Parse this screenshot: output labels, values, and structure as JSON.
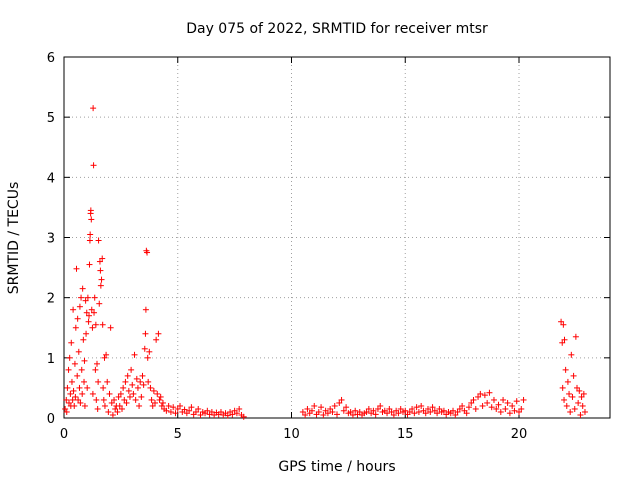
{
  "chart_data": {
    "type": "scatter",
    "title": "Day 075 of 2022, SRMTID for receiver mtsr",
    "xlabel": "GPS time / hours",
    "ylabel": "SRMTID / TECUs",
    "xlim": [
      0,
      24
    ],
    "ylim": [
      0,
      6
    ],
    "xticks": [
      0,
      5,
      10,
      15,
      20
    ],
    "yticks": [
      0,
      1,
      2,
      3,
      4,
      5,
      6
    ],
    "grid": true,
    "marker": "+",
    "color": "#ff0000",
    "series": [
      {
        "name": "SRMTID",
        "points": [
          [
            0.05,
            0.15
          ],
          [
            0.1,
            0.3
          ],
          [
            0.12,
            0.1
          ],
          [
            0.15,
            0.5
          ],
          [
            0.2,
            0.8
          ],
          [
            0.22,
            0.25
          ],
          [
            0.25,
            1.0
          ],
          [
            0.28,
            0.4
          ],
          [
            0.3,
            0.2
          ],
          [
            0.32,
            1.25
          ],
          [
            0.35,
            0.6
          ],
          [
            0.38,
            0.3
          ],
          [
            0.4,
            1.8
          ],
          [
            0.42,
            0.45
          ],
          [
            0.45,
            0.2
          ],
          [
            0.48,
            0.9
          ],
          [
            0.5,
            0.35
          ],
          [
            0.52,
            1.5
          ],
          [
            0.55,
            2.48
          ],
          [
            0.58,
            0.7
          ],
          [
            0.6,
            1.65
          ],
          [
            0.62,
            0.3
          ],
          [
            0.65,
            1.1
          ],
          [
            0.68,
            0.5
          ],
          [
            0.7,
            1.85
          ],
          [
            0.72,
            0.25
          ],
          [
            0.75,
            2.0
          ],
          [
            0.78,
            0.8
          ],
          [
            0.8,
            0.4
          ],
          [
            0.82,
            2.15
          ],
          [
            0.85,
            1.3
          ],
          [
            0.88,
            0.6
          ],
          [
            0.9,
            0.95
          ],
          [
            0.92,
            0.2
          ],
          [
            0.95,
            1.95
          ],
          [
            0.97,
            1.4
          ],
          [
            1.0,
            1.75
          ],
          [
            1.02,
            0.5
          ],
          [
            1.05,
            2.0
          ],
          [
            1.08,
            1.6
          ],
          [
            1.1,
            1.7
          ],
          [
            1.12,
            2.55
          ],
          [
            1.14,
            2.95
          ],
          [
            1.15,
            3.05
          ],
          [
            1.17,
            3.4
          ],
          [
            1.18,
            3.45
          ],
          [
            1.2,
            3.3
          ],
          [
            1.22,
            1.8
          ],
          [
            1.25,
            1.5
          ],
          [
            1.27,
            0.4
          ],
          [
            1.28,
            5.15
          ],
          [
            1.3,
            4.2
          ],
          [
            1.32,
            1.75
          ],
          [
            1.35,
            2.0
          ],
          [
            1.38,
            0.8
          ],
          [
            1.4,
            1.55
          ],
          [
            1.42,
            0.3
          ],
          [
            1.45,
            0.9
          ],
          [
            1.48,
            0.15
          ],
          [
            1.5,
            0.6
          ],
          [
            1.52,
            2.95
          ],
          [
            1.55,
            1.9
          ],
          [
            1.58,
            2.6
          ],
          [
            1.6,
            2.45
          ],
          [
            1.62,
            2.2
          ],
          [
            1.65,
            2.3
          ],
          [
            1.68,
            2.65
          ],
          [
            1.7,
            1.55
          ],
          [
            1.72,
            0.5
          ],
          [
            1.75,
            0.3
          ],
          [
            1.78,
            1.0
          ],
          [
            1.8,
            0.2
          ],
          [
            1.85,
            1.05
          ],
          [
            1.9,
            0.6
          ],
          [
            1.95,
            0.1
          ],
          [
            2.0,
            0.4
          ],
          [
            2.05,
            1.5
          ],
          [
            2.1,
            0.25
          ],
          [
            2.15,
            0.05
          ],
          [
            2.2,
            0.3
          ],
          [
            2.25,
            0.15
          ],
          [
            2.3,
            0.2
          ],
          [
            2.35,
            0.1
          ],
          [
            2.4,
            0.35
          ],
          [
            2.45,
            0.2
          ],
          [
            2.5,
            0.4
          ],
          [
            2.55,
            0.15
          ],
          [
            2.6,
            0.5
          ],
          [
            2.65,
            0.3
          ],
          [
            2.7,
            0.6
          ],
          [
            2.75,
            0.25
          ],
          [
            2.8,
            0.7
          ],
          [
            2.85,
            0.45
          ],
          [
            2.9,
            0.35
          ],
          [
            2.95,
            0.8
          ],
          [
            3.0,
            0.55
          ],
          [
            3.05,
            0.4
          ],
          [
            3.1,
            1.05
          ],
          [
            3.15,
            0.3
          ],
          [
            3.2,
            0.65
          ],
          [
            3.25,
            0.5
          ],
          [
            3.3,
            0.2
          ],
          [
            3.35,
            0.6
          ],
          [
            3.4,
            0.35
          ],
          [
            3.45,
            0.7
          ],
          [
            3.5,
            0.55
          ],
          [
            3.55,
            1.15
          ],
          [
            3.58,
            1.4
          ],
          [
            3.6,
            1.8
          ],
          [
            3.62,
            2.78
          ],
          [
            3.65,
            2.75
          ],
          [
            3.68,
            1.0
          ],
          [
            3.7,
            0.6
          ],
          [
            3.75,
            1.1
          ],
          [
            3.8,
            0.5
          ],
          [
            3.85,
            0.3
          ],
          [
            3.9,
            0.2
          ],
          [
            3.95,
            0.45
          ],
          [
            4.0,
            0.25
          ],
          [
            4.05,
            1.3
          ],
          [
            4.1,
            0.4
          ],
          [
            4.15,
            1.4
          ],
          [
            4.2,
            0.3
          ],
          [
            4.25,
            0.35
          ],
          [
            4.3,
            0.2
          ],
          [
            4.35,
            0.25
          ],
          [
            4.4,
            0.15
          ],
          [
            4.5,
            0.12
          ],
          [
            4.6,
            0.2
          ],
          [
            4.7,
            0.1
          ],
          [
            4.8,
            0.18
          ],
          [
            4.9,
            0.08
          ],
          [
            5.0,
            0.15
          ],
          [
            5.1,
            0.2
          ],
          [
            5.2,
            0.1
          ],
          [
            5.3,
            0.14
          ],
          [
            5.4,
            0.08
          ],
          [
            5.5,
            0.12
          ],
          [
            5.6,
            0.18
          ],
          [
            5.7,
            0.06
          ],
          [
            5.8,
            0.1
          ],
          [
            5.9,
            0.15
          ],
          [
            6.0,
            0.05
          ],
          [
            6.1,
            0.1
          ],
          [
            6.2,
            0.08
          ],
          [
            6.3,
            0.12
          ],
          [
            6.4,
            0.06
          ],
          [
            6.5,
            0.1
          ],
          [
            6.6,
            0.05
          ],
          [
            6.7,
            0.09
          ],
          [
            6.8,
            0.06
          ],
          [
            6.9,
            0.1
          ],
          [
            7.0,
            0.05
          ],
          [
            7.1,
            0.08
          ],
          [
            7.2,
            0.04
          ],
          [
            7.3,
            0.1
          ],
          [
            7.4,
            0.06
          ],
          [
            7.5,
            0.12
          ],
          [
            7.6,
            0.08
          ],
          [
            7.7,
            0.15
          ],
          [
            7.8,
            0.05
          ],
          [
            7.9,
            0.02
          ],
          [
            10.5,
            0.1
          ],
          [
            10.6,
            0.05
          ],
          [
            10.7,
            0.15
          ],
          [
            10.8,
            0.08
          ],
          [
            10.9,
            0.12
          ],
          [
            11.0,
            0.2
          ],
          [
            11.1,
            0.06
          ],
          [
            11.2,
            0.1
          ],
          [
            11.3,
            0.18
          ],
          [
            11.4,
            0.05
          ],
          [
            11.5,
            0.12
          ],
          [
            11.6,
            0.08
          ],
          [
            11.7,
            0.15
          ],
          [
            11.8,
            0.1
          ],
          [
            11.9,
            0.2
          ],
          [
            12.0,
            0.06
          ],
          [
            12.1,
            0.25
          ],
          [
            12.2,
            0.3
          ],
          [
            12.3,
            0.12
          ],
          [
            12.4,
            0.18
          ],
          [
            12.5,
            0.08
          ],
          [
            12.6,
            0.1
          ],
          [
            12.7,
            0.05
          ],
          [
            12.8,
            0.12
          ],
          [
            12.9,
            0.06
          ],
          [
            13.0,
            0.1
          ],
          [
            13.1,
            0.05
          ],
          [
            13.2,
            0.08
          ],
          [
            13.3,
            0.1
          ],
          [
            13.4,
            0.15
          ],
          [
            13.5,
            0.08
          ],
          [
            13.6,
            0.12
          ],
          [
            13.7,
            0.06
          ],
          [
            13.8,
            0.15
          ],
          [
            13.9,
            0.2
          ],
          [
            14.0,
            0.1
          ],
          [
            14.1,
            0.12
          ],
          [
            14.2,
            0.08
          ],
          [
            14.3,
            0.15
          ],
          [
            14.4,
            0.1
          ],
          [
            14.5,
            0.05
          ],
          [
            14.6,
            0.12
          ],
          [
            14.7,
            0.08
          ],
          [
            14.8,
            0.15
          ],
          [
            14.9,
            0.1
          ],
          [
            15.0,
            0.12
          ],
          [
            15.1,
            0.06
          ],
          [
            15.2,
            0.1
          ],
          [
            15.3,
            0.15
          ],
          [
            15.4,
            0.08
          ],
          [
            15.5,
            0.18
          ],
          [
            15.6,
            0.1
          ],
          [
            15.7,
            0.2
          ],
          [
            15.8,
            0.12
          ],
          [
            15.9,
            0.08
          ],
          [
            16.0,
            0.15
          ],
          [
            16.1,
            0.1
          ],
          [
            16.2,
            0.18
          ],
          [
            16.3,
            0.12
          ],
          [
            16.4,
            0.08
          ],
          [
            16.5,
            0.15
          ],
          [
            16.6,
            0.1
          ],
          [
            16.7,
            0.12
          ],
          [
            16.8,
            0.06
          ],
          [
            16.9,
            0.1
          ],
          [
            17.0,
            0.08
          ],
          [
            17.1,
            0.12
          ],
          [
            17.2,
            0.05
          ],
          [
            17.3,
            0.1
          ],
          [
            17.4,
            0.15
          ],
          [
            17.5,
            0.2
          ],
          [
            17.6,
            0.12
          ],
          [
            17.7,
            0.08
          ],
          [
            17.8,
            0.18
          ],
          [
            17.9,
            0.25
          ],
          [
            18.0,
            0.3
          ],
          [
            18.1,
            0.15
          ],
          [
            18.2,
            0.35
          ],
          [
            18.3,
            0.4
          ],
          [
            18.4,
            0.2
          ],
          [
            18.5,
            0.38
          ],
          [
            18.6,
            0.25
          ],
          [
            18.7,
            0.42
          ],
          [
            18.8,
            0.18
          ],
          [
            18.9,
            0.3
          ],
          [
            19.0,
            0.15
          ],
          [
            19.1,
            0.22
          ],
          [
            19.2,
            0.1
          ],
          [
            19.3,
            0.3
          ],
          [
            19.4,
            0.15
          ],
          [
            19.5,
            0.25
          ],
          [
            19.6,
            0.08
          ],
          [
            19.7,
            0.2
          ],
          [
            19.8,
            0.12
          ],
          [
            19.9,
            0.28
          ],
          [
            20.0,
            0.1
          ],
          [
            20.1,
            0.15
          ],
          [
            20.2,
            0.3
          ],
          [
            21.85,
            1.6
          ],
          [
            21.9,
            1.25
          ],
          [
            21.92,
            0.5
          ],
          [
            21.95,
            1.55
          ],
          [
            21.98,
            0.3
          ],
          [
            22.0,
            1.3
          ],
          [
            22.05,
            0.8
          ],
          [
            22.1,
            0.2
          ],
          [
            22.15,
            0.6
          ],
          [
            22.2,
            0.4
          ],
          [
            22.25,
            0.1
          ],
          [
            22.3,
            1.05
          ],
          [
            22.35,
            0.35
          ],
          [
            22.4,
            0.7
          ],
          [
            22.45,
            0.15
          ],
          [
            22.5,
            1.35
          ],
          [
            22.55,
            0.5
          ],
          [
            22.6,
            0.25
          ],
          [
            22.65,
            0.45
          ],
          [
            22.7,
            0.05
          ],
          [
            22.75,
            0.35
          ],
          [
            22.8,
            0.2
          ],
          [
            22.85,
            0.4
          ],
          [
            22.9,
            0.1
          ]
        ]
      }
    ]
  }
}
